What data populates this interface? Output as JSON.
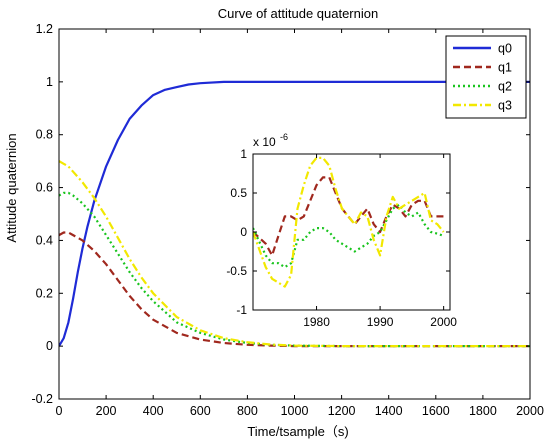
{
  "chart_data": [
    {
      "type": "line",
      "title": "Curve of attitude quaternion",
      "xlabel": "Time/tsample（s)",
      "ylabel": "Attitude quaternion",
      "xlim": [
        0,
        2000
      ],
      "ylim": [
        -0.2,
        1.2
      ],
      "xticks": [
        "0",
        "200",
        "400",
        "600",
        "800",
        "1000",
        "1200",
        "1400",
        "1600",
        "1800",
        "2000"
      ],
      "yticks": [
        "-0.2",
        "0",
        "0.2",
        "0.4",
        "0.6",
        "0.8",
        "1",
        "1.2"
      ],
      "grid": false,
      "legend": "top-right",
      "series": [
        {
          "name": "q0",
          "color": "#1f2bd6",
          "style": "solid",
          "x": [
            0,
            20,
            40,
            60,
            80,
            100,
            120,
            150,
            200,
            250,
            300,
            350,
            400,
            450,
            500,
            550,
            600,
            700,
            800,
            1000,
            1200,
            1400,
            1600,
            1800,
            2000
          ],
          "y": [
            0,
            0.03,
            0.09,
            0.18,
            0.28,
            0.37,
            0.45,
            0.55,
            0.68,
            0.78,
            0.86,
            0.91,
            0.95,
            0.97,
            0.98,
            0.99,
            0.995,
            1.0,
            1.0,
            1.0,
            1.0,
            1.0,
            1.0,
            1.0,
            1.0
          ]
        },
        {
          "name": "q1",
          "color": "#a0281e",
          "style": "dashed",
          "x": [
            0,
            20,
            40,
            60,
            100,
            150,
            200,
            250,
            300,
            350,
            400,
            500,
            600,
            700,
            800,
            900,
            1000,
            1200,
            1400,
            1600,
            1800,
            2000
          ],
          "y": [
            0.42,
            0.43,
            0.43,
            0.42,
            0.4,
            0.36,
            0.31,
            0.25,
            0.19,
            0.14,
            0.1,
            0.05,
            0.025,
            0.012,
            0.005,
            0.002,
            0.0,
            0.0,
            0.0,
            0.0,
            0.0,
            0.0
          ]
        },
        {
          "name": "q2",
          "color": "#19c41e",
          "style": "dotted",
          "x": [
            0,
            20,
            40,
            60,
            100,
            150,
            200,
            250,
            300,
            350,
            400,
            500,
            600,
            700,
            800,
            900,
            1000,
            1200,
            1400,
            1600,
            1800,
            2000
          ],
          "y": [
            0.57,
            0.58,
            0.58,
            0.57,
            0.54,
            0.49,
            0.42,
            0.35,
            0.28,
            0.22,
            0.17,
            0.09,
            0.05,
            0.025,
            0.012,
            0.005,
            0.002,
            0.0,
            0.0,
            0.0,
            0.0,
            0.0
          ]
        },
        {
          "name": "q3",
          "color": "#f2e800",
          "style": "dashdot",
          "x": [
            0,
            20,
            40,
            60,
            100,
            150,
            200,
            250,
            300,
            350,
            400,
            500,
            600,
            700,
            800,
            900,
            1000,
            1200,
            1400,
            1600,
            1800,
            2000
          ],
          "y": [
            0.7,
            0.69,
            0.68,
            0.66,
            0.62,
            0.56,
            0.49,
            0.41,
            0.33,
            0.26,
            0.2,
            0.11,
            0.06,
            0.03,
            0.015,
            0.006,
            0.002,
            0.0,
            0.0,
            0.0,
            0.0,
            0.0
          ]
        }
      ]
    },
    {
      "type": "line",
      "title": "",
      "xlim": [
        1970,
        2001
      ],
      "ylim": [
        -1,
        1
      ],
      "xticks": [
        "1980",
        "1990",
        "2000"
      ],
      "yticks": [
        "-1",
        "-0.5",
        "0",
        "0.5",
        "1"
      ],
      "y_scale_label": "x 10",
      "y_scale_exponent": "-6",
      "series": [
        {
          "name": "q1",
          "color": "#a0281e",
          "style": "dashed",
          "x": [
            1970,
            1972,
            1973,
            1974,
            1975,
            1976,
            1977,
            1978,
            1979,
            1980,
            1981,
            1982,
            1983,
            1984,
            1985,
            1986,
            1987,
            1988,
            1989,
            1990,
            1991,
            1992,
            1993,
            1994,
            1995,
            1996,
            1997,
            1998,
            1999,
            2000
          ],
          "y": [
            0.0,
            -0.15,
            -0.3,
            -0.05,
            0.2,
            0.2,
            0.15,
            0.2,
            0.4,
            0.6,
            0.7,
            0.7,
            0.5,
            0.3,
            0.2,
            0.1,
            0.2,
            0.3,
            0.1,
            0.0,
            0.2,
            0.35,
            0.3,
            0.2,
            0.35,
            0.4,
            0.4,
            0.2,
            0.2,
            0.2
          ]
        },
        {
          "name": "q2",
          "color": "#19c41e",
          "style": "dotted",
          "x": [
            1970,
            1972,
            1973,
            1974,
            1975,
            1976,
            1977,
            1978,
            1979,
            1980,
            1981,
            1982,
            1983,
            1984,
            1985,
            1986,
            1987,
            1988,
            1989,
            1990,
            1991,
            1992,
            1993,
            1994,
            1995,
            1996,
            1997,
            1998,
            1999,
            2000
          ],
          "y": [
            0.05,
            -0.3,
            -0.4,
            -0.4,
            -0.45,
            -0.4,
            -0.1,
            -0.1,
            0.0,
            0.05,
            0.05,
            0.0,
            -0.1,
            -0.15,
            -0.2,
            -0.25,
            -0.2,
            -0.15,
            -0.05,
            0.0,
            0.15,
            0.3,
            0.35,
            0.25,
            0.2,
            0.25,
            0.1,
            0.0,
            -0.02,
            -0.05
          ]
        },
        {
          "name": "q3",
          "color": "#f2e800",
          "style": "dashdot",
          "x": [
            1970,
            1972,
            1973,
            1974,
            1975,
            1976,
            1977,
            1978,
            1979,
            1980,
            1981,
            1982,
            1983,
            1984,
            1985,
            1986,
            1987,
            1988,
            1989,
            1990,
            1991,
            1992,
            1993,
            1994,
            1995,
            1996,
            1997,
            1998,
            1999,
            2000
          ],
          "y": [
            0.0,
            -0.45,
            -0.6,
            -0.65,
            -0.7,
            -0.55,
            0.3,
            0.6,
            0.85,
            0.95,
            0.95,
            0.85,
            0.55,
            0.3,
            0.2,
            0.1,
            0.25,
            0.2,
            -0.1,
            -0.3,
            0.2,
            0.45,
            0.3,
            0.35,
            0.4,
            0.45,
            0.5,
            0.15,
            0.1,
            0.0
          ]
        }
      ]
    }
  ]
}
